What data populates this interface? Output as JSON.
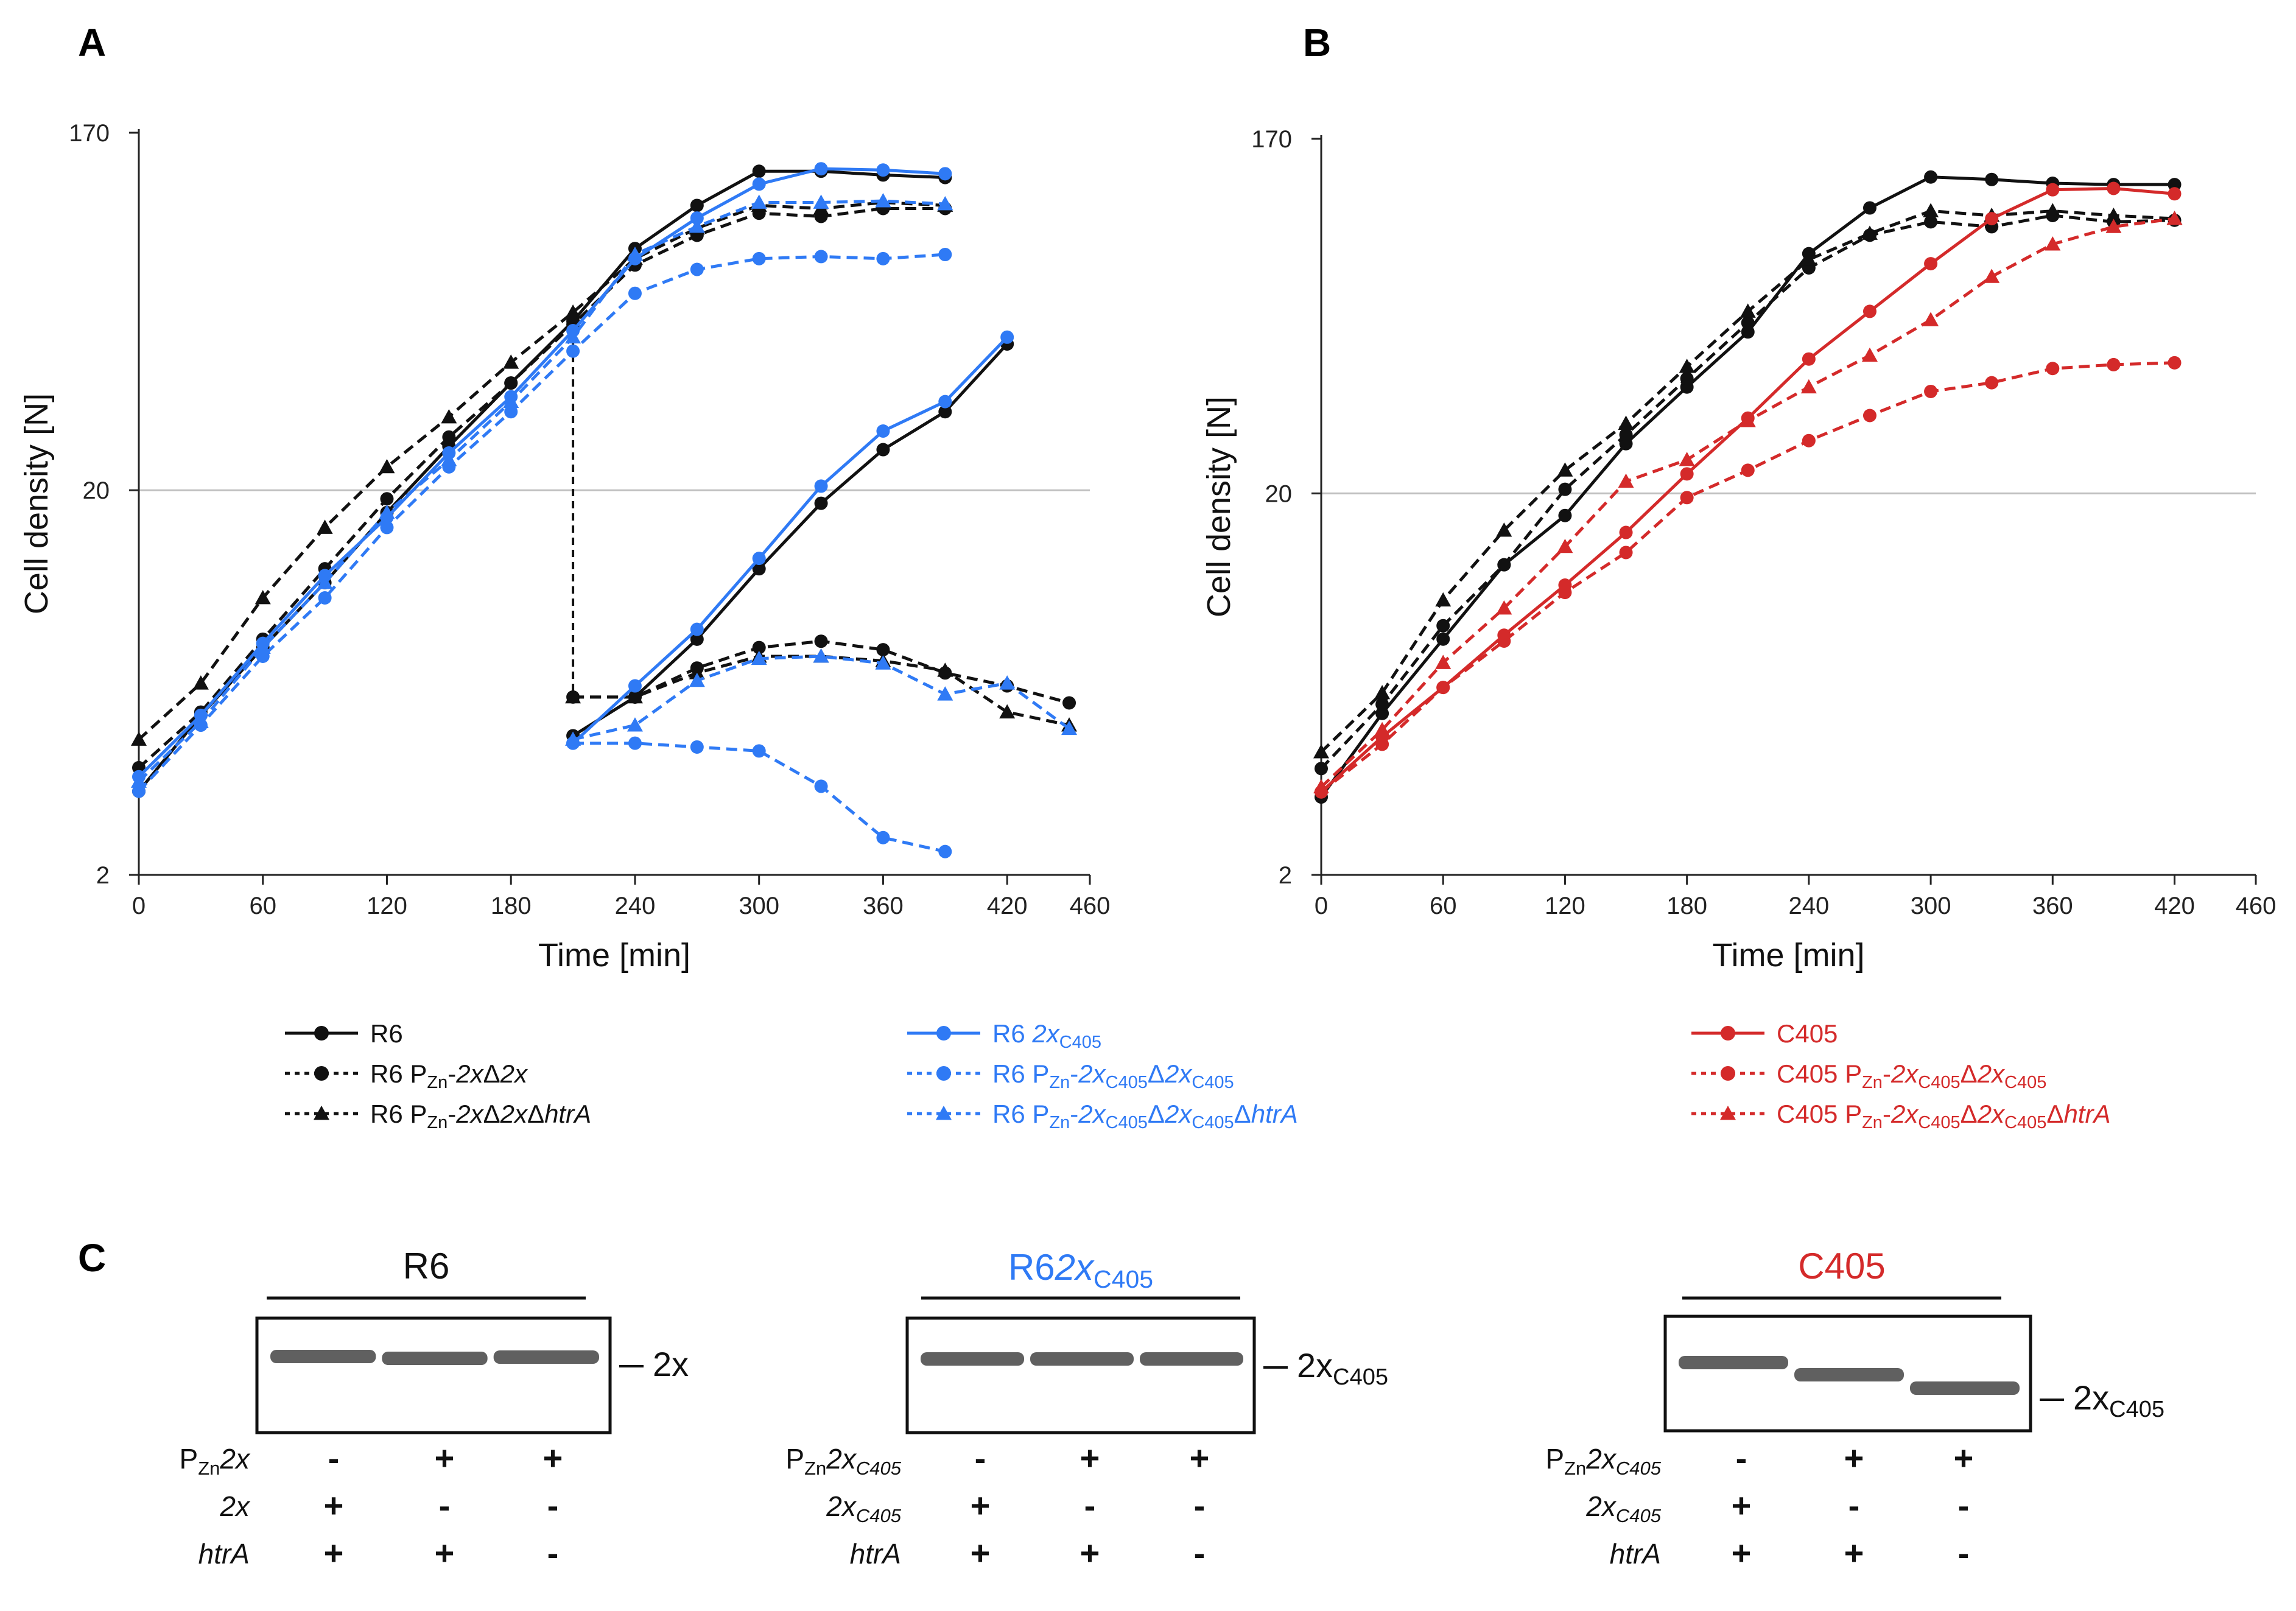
{
  "panels": {
    "A": {
      "label": "A"
    },
    "B": {
      "label": "B"
    },
    "C": {
      "label": "C"
    }
  },
  "colors": {
    "black": "#111111",
    "blue": "#2f7af5",
    "red": "#d42a2a",
    "grid": "#bfbfbf"
  },
  "chart_data": [
    {
      "type": "line",
      "panel": "A",
      "xlabel": "Time [min]",
      "ylabel": "Cell density [N]",
      "yscale": "log",
      "xlim": [
        0,
        460
      ],
      "ylim": [
        2,
        170
      ],
      "xticks": [
        0,
        60,
        120,
        180,
        240,
        300,
        360,
        420,
        460
      ],
      "yticks": [
        2,
        20,
        170
      ],
      "hline": 20,
      "series": [
        {
          "name": "R6",
          "color": "black",
          "dash": "solid",
          "marker": "circle",
          "x": [
            0,
            30,
            60,
            90,
            120,
            150,
            180,
            210,
            240,
            270,
            300,
            330,
            360,
            390
          ],
          "y": [
            3.3,
            5.2,
            7.8,
            11.5,
            17.5,
            26,
            38,
            55,
            85,
            110,
            135,
            135,
            132,
            130
          ]
        },
        {
          "name": "R6 PZn-2xΔ2x",
          "color": "black",
          "dash": "dashed",
          "marker": "circle",
          "x": [
            0,
            30,
            60,
            90,
            120,
            150,
            180,
            210,
            240,
            270,
            300,
            330,
            360,
            390
          ],
          "y": [
            3.8,
            5.3,
            8.2,
            12.5,
            19,
            27.5,
            38,
            54,
            77,
            92,
            105,
            103,
            108,
            108
          ]
        },
        {
          "name": "R6 PZn-2xΔ2xΔhtrA",
          "color": "black",
          "dash": "dashed",
          "marker": "triangle",
          "x": [
            0,
            30,
            60,
            90,
            120,
            150,
            180,
            210,
            240,
            270,
            300,
            330,
            360,
            390
          ],
          "y": [
            4.5,
            6.3,
            10.5,
            16,
            23,
            31,
            43,
            58,
            80,
            96,
            110,
            108,
            112,
            110
          ]
        },
        {
          "name": "R6 2xC405",
          "color": "blue",
          "dash": "solid",
          "marker": "circle",
          "x": [
            0,
            30,
            60,
            90,
            120,
            150,
            180,
            210,
            240,
            270,
            300,
            330,
            360,
            390
          ],
          "y": [
            3.6,
            5.2,
            8.0,
            12.0,
            17.0,
            25.0,
            35.0,
            52.0,
            80.0,
            102.0,
            125.0,
            137.0,
            136.0,
            133.0
          ]
        },
        {
          "name": "R6 PZn-2xC405Δ2xC405",
          "color": "blue",
          "dash": "dashed",
          "marker": "circle",
          "x": [
            0,
            30,
            60,
            90,
            120,
            150,
            180,
            210,
            240,
            270,
            300,
            330,
            360,
            390
          ],
          "y": [
            3.3,
            4.9,
            7.4,
            10.5,
            16,
            23,
            32,
            46,
            65,
            75,
            80,
            81,
            80,
            82
          ]
        },
        {
          "name": "R6 PZn-2xC405Δ2xC405ΔhtrA",
          "color": "blue",
          "dash": "dashed",
          "marker": "triangle",
          "x": [
            0,
            30,
            60,
            90,
            120,
            150,
            180,
            210,
            240,
            270,
            300,
            330,
            360,
            390
          ],
          "y": [
            3.5,
            5.0,
            7.8,
            11.5,
            17.5,
            24,
            34,
            50,
            82,
            97,
            112,
            112,
            113,
            111
          ]
        },
        {
          "name": "R6 (subculture)",
          "color": "black",
          "dash": "solid",
          "marker": "circle",
          "x": [
            210,
            240,
            270,
            300,
            330,
            360,
            390,
            420
          ],
          "y": [
            4.6,
            5.8,
            8.2,
            12.5,
            18.5,
            25.5,
            32,
            48
          ]
        },
        {
          "name": "R6 PZn-2xΔ2x (subculture)",
          "color": "black",
          "dash": "dashed",
          "marker": "circle",
          "x": [
            210,
            240,
            270,
            300,
            330,
            360,
            390,
            420,
            450
          ],
          "y": [
            5.8,
            5.8,
            6.9,
            7.8,
            8.1,
            7.7,
            6.7,
            6.2,
            5.6
          ]
        },
        {
          "name": "R6 PZn-2xΔ2xΔhtrA (subculture)",
          "color": "black",
          "dash": "dashed",
          "marker": "triangle",
          "x": [
            210,
            240,
            270,
            300,
            330,
            360,
            390,
            420,
            450
          ],
          "y": [
            5.8,
            5.8,
            6.7,
            7.4,
            7.4,
            7.2,
            6.8,
            5.3,
            4.9
          ]
        },
        {
          "name": "R6 2xC405 (subculture)",
          "color": "blue",
          "dash": "solid",
          "marker": "circle",
          "x": [
            210,
            240,
            270,
            300,
            330,
            360,
            390,
            420
          ],
          "y": [
            4.4,
            6.2,
            8.7,
            13.3,
            20.5,
            28.5,
            34,
            50
          ]
        },
        {
          "name": "R6 PZn-2xC405Δ2xC405 (subculture)",
          "color": "blue",
          "dash": "dashed",
          "marker": "circle",
          "x": [
            210,
            240,
            270,
            300,
            330,
            360,
            390
          ],
          "y": [
            4.4,
            4.4,
            4.3,
            4.2,
            3.4,
            2.5,
            2.3
          ]
        },
        {
          "name": "R6 PZn-2xC405Δ2xC405ΔhtrA (subculture)",
          "color": "blue",
          "dash": "dashed",
          "marker": "triangle",
          "x": [
            210,
            240,
            270,
            300,
            330,
            360,
            390,
            420,
            450
          ],
          "y": [
            4.5,
            4.9,
            6.4,
            7.3,
            7.4,
            7.1,
            5.9,
            6.3,
            4.8
          ]
        }
      ],
      "transfer_line": {
        "x": 210,
        "y_from": 52,
        "y_to": 5.8
      },
      "legend": [
        {
          "label": "R6",
          "series": 0
        },
        {
          "label": "R6 PZn-2xΔ2x",
          "series": 1
        },
        {
          "label": "R6 PZn-2xΔ2xΔhtrA",
          "series": 2
        },
        {
          "label": "R6 2xC405",
          "series": 3
        },
        {
          "label": "R6 PZn-2xC405Δ2xC405",
          "series": 4
        },
        {
          "label": "R6 PZn-2xC405Δ2xC405ΔhtrA",
          "series": 5
        }
      ]
    },
    {
      "type": "line",
      "panel": "B",
      "xlabel": "Time [min]",
      "ylabel": "Cell density [N]",
      "yscale": "log",
      "xlim": [
        0,
        460
      ],
      "ylim": [
        2,
        170
      ],
      "xticks": [
        0,
        60,
        120,
        180,
        240,
        300,
        360,
        420,
        460
      ],
      "yticks": [
        2,
        20,
        170
      ],
      "hline": 20,
      "series": [
        {
          "name": "R6",
          "color": "black",
          "dash": "solid",
          "marker": "circle",
          "x": [
            0,
            30,
            60,
            90,
            120,
            150,
            180,
            210,
            240,
            270,
            300,
            330,
            360,
            390,
            420
          ],
          "y": [
            3.2,
            5.3,
            8.3,
            13.0,
            17.5,
            27,
            38,
            53,
            85,
            112,
            135,
            133,
            130,
            129,
            129
          ]
        },
        {
          "name": "R6 PZn-2xΔ2x",
          "color": "black",
          "dash": "dashed",
          "marker": "circle",
          "x": [
            0,
            30,
            60,
            90,
            120,
            150,
            180,
            210,
            240,
            270,
            300,
            330,
            360,
            390,
            420
          ],
          "y": [
            3.8,
            5.6,
            9.0,
            13.0,
            20.5,
            28.5,
            40,
            56,
            78,
            95,
            103,
            100,
            107,
            103,
            104
          ]
        },
        {
          "name": "R6 PZn-2xΔ2xΔhtrA",
          "color": "black",
          "dash": "dashed",
          "marker": "triangle",
          "x": [
            0,
            30,
            60,
            90,
            120,
            150,
            180,
            210,
            240,
            270,
            300,
            330,
            360,
            390,
            420
          ],
          "y": [
            4.2,
            6.0,
            10.5,
            16.0,
            23.0,
            30.5,
            43.0,
            60,
            82,
            96,
            110,
            107,
            110,
            107,
            105
          ]
        },
        {
          "name": "C405",
          "color": "red",
          "dash": "solid",
          "marker": "circle",
          "x": [
            0,
            30,
            60,
            90,
            120,
            150,
            180,
            210,
            240,
            270,
            300,
            330,
            360,
            390,
            420
          ],
          "y": [
            3.3,
            4.6,
            6.2,
            8.5,
            11.5,
            15.8,
            22.5,
            31.5,
            45,
            60,
            80,
            105,
            125,
            126,
            122
          ]
        },
        {
          "name": "C405 PZn-2xC405Δ2xC405",
          "color": "red",
          "dash": "dashed",
          "marker": "circle",
          "x": [
            0,
            30,
            60,
            90,
            120,
            150,
            180,
            210,
            240,
            270,
            300,
            330,
            360,
            390,
            420
          ],
          "y": [
            3.3,
            4.4,
            6.2,
            8.2,
            11.0,
            14.0,
            19.5,
            23.0,
            27.5,
            32.0,
            37.0,
            39.0,
            42.5,
            43.5,
            44.0
          ]
        },
        {
          "name": "C405 PZn-2xC405Δ2xC405ΔhtrA",
          "color": "red",
          "dash": "dashed",
          "marker": "triangle",
          "x": [
            0,
            30,
            60,
            90,
            120,
            150,
            180,
            210,
            240,
            270,
            300,
            330,
            360,
            390,
            420
          ],
          "y": [
            3.4,
            4.8,
            7.2,
            10.0,
            14.5,
            21.5,
            24.5,
            31.0,
            38.0,
            46.0,
            57.0,
            74.0,
            90.0,
            100.0,
            105.0
          ]
        }
      ],
      "legend": [
        {
          "label": "C405",
          "series": 3
        },
        {
          "label": "C405 PZn-2xC405Δ2xC405",
          "series": 4
        },
        {
          "label": "C405 PZn-2xC405Δ2xC405ΔhtrA",
          "series": 5
        }
      ]
    }
  ],
  "blots": [
    {
      "strain": "R6",
      "strain_color": "black",
      "band_label": "2x",
      "rows": [
        {
          "label": "PZn2x",
          "values": [
            "-",
            "+",
            "+"
          ]
        },
        {
          "label": "2x",
          "values": [
            "+",
            "-",
            "-"
          ]
        },
        {
          "label": "htrA",
          "values": [
            "+",
            "+",
            "-"
          ]
        }
      ]
    },
    {
      "strain": "R62xC405",
      "strain_color": "blue",
      "band_label": "2xC405",
      "rows": [
        {
          "label": "PZn2xC405",
          "values": [
            "-",
            "+",
            "+"
          ]
        },
        {
          "label": "2xC405",
          "values": [
            "+",
            "-",
            "-"
          ]
        },
        {
          "label": "htrA",
          "values": [
            "+",
            "+",
            "-"
          ]
        }
      ]
    },
    {
      "strain": "C405",
      "strain_color": "red",
      "band_label": "2xC405",
      "rows": [
        {
          "label": "PZn2xC405",
          "values": [
            "-",
            "+",
            "+"
          ]
        },
        {
          "label": "2xC405",
          "values": [
            "+",
            "-",
            "-"
          ]
        },
        {
          "label": "htrA",
          "values": [
            "+",
            "+",
            "-"
          ]
        }
      ]
    }
  ]
}
